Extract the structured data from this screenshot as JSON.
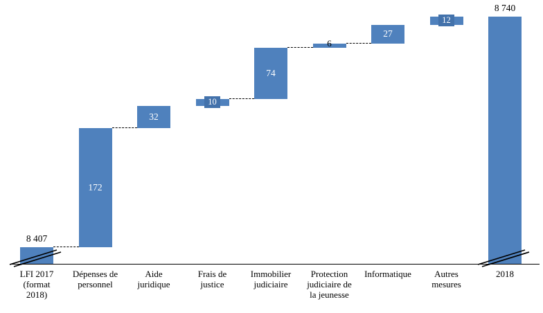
{
  "chart_data": {
    "type": "bar",
    "subtype": "waterfall",
    "title": "",
    "legend": false,
    "grid": false,
    "categories": [
      "LFI 2017 (format 2018)",
      "Dépenses de personnel",
      "Aide juridique",
      "Frais de justice",
      "Immobilier judiciaire",
      "Protection judiciaire de la jeunesse",
      "Informatique",
      "Autres mesures",
      "2018"
    ],
    "category_label_lines": [
      [
        "LFI 2017",
        "(format",
        "2018)"
      ],
      [
        "Dépenses de",
        "personnel"
      ],
      [
        "Aide",
        "juridique"
      ],
      [
        "Frais de",
        "justice"
      ],
      [
        "Immobilier",
        "judiciaire"
      ],
      [
        "Protection",
        "judiciaire de",
        "la jeunesse"
      ],
      [
        "Informatique"
      ],
      [
        "Autres",
        "mesures"
      ],
      [
        "2018"
      ]
    ],
    "bars": [
      {
        "slug": "lfi-2017",
        "role": "total",
        "value": 8407,
        "label": "8 407",
        "label_position": "above",
        "truncated": true
      },
      {
        "slug": "depenses-de-personnel",
        "role": "delta",
        "value": 172,
        "label": "172",
        "label_position": "inside",
        "truncated": false
      },
      {
        "slug": "aide-juridique",
        "role": "delta",
        "value": 32,
        "label": "32",
        "label_position": "inside",
        "truncated": false
      },
      {
        "slug": "frais-de-justice",
        "role": "delta",
        "value": 10,
        "label": "10",
        "label_position": "boxed",
        "truncated": false
      },
      {
        "slug": "immobilier-judiciaire",
        "role": "delta",
        "value": 74,
        "label": "74",
        "label_position": "inside",
        "truncated": false
      },
      {
        "slug": "protection-judiciaire-jeunesse",
        "role": "delta",
        "value": 6,
        "label": "6",
        "label_position": "outside-top",
        "truncated": false
      },
      {
        "slug": "informatique",
        "role": "delta",
        "value": 27,
        "label": "27",
        "label_position": "inside",
        "truncated": false
      },
      {
        "slug": "autres-mesures",
        "role": "delta",
        "value": 12,
        "label": "12",
        "label_position": "boxed",
        "truncated": false
      },
      {
        "slug": "2018",
        "role": "total",
        "value": 8740,
        "label": "8 740",
        "label_position": "above",
        "truncated": true
      }
    ],
    "cumulative_levels": [
      8407,
      8579,
      8611,
      8621,
      8695,
      8701,
      8728,
      8740,
      8740
    ],
    "connectors_between": [
      [
        0,
        1
      ],
      [
        1,
        2
      ],
      [
        3,
        4
      ],
      [
        4,
        5
      ],
      [
        5,
        6
      ]
    ],
    "axis": {
      "orientation": "horizontal-baseline",
      "baseline_value": 8383,
      "broken_axis": true,
      "tick_labels": []
    },
    "colors": {
      "bar": "#4f81bd",
      "label_box": "#4372ab",
      "connector": "#000000",
      "axis": "#000000",
      "text_inside": "#ffffff",
      "text_outside": "#000000"
    }
  }
}
